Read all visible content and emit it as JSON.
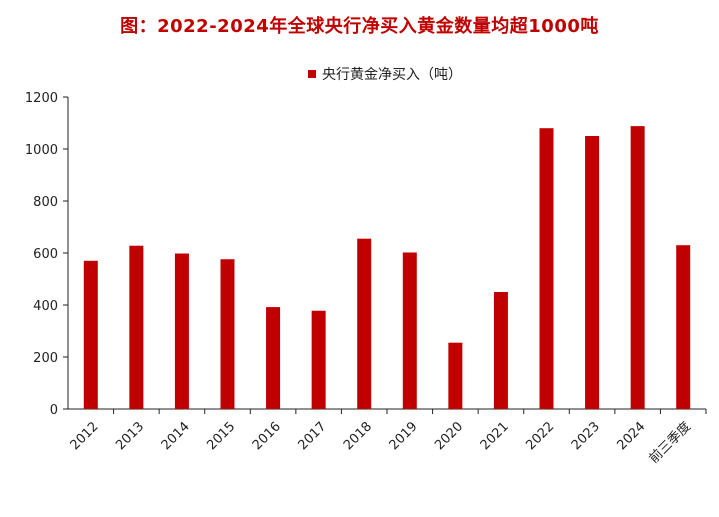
{
  "chart_data": {
    "type": "bar",
    "title": "图：2022-2024年全球央行净买入黄金数量均超1000吨",
    "categories": [
      "2012",
      "2013",
      "2014",
      "2015",
      "2016",
      "2017",
      "2018",
      "2019",
      "2020",
      "2021",
      "2022",
      "2023",
      "2024",
      "前三季度"
    ],
    "series": [
      {
        "name": "央行黄金净买入（吨）",
        "values": [
          570,
          628,
          598,
          576,
          392,
          378,
          655,
          602,
          255,
          450,
          1080,
          1050,
          1088,
          630
        ]
      }
    ],
    "xlabel": "",
    "ylabel": "",
    "ylim": [
      0,
      1200
    ],
    "yticks": [
      0,
      200,
      400,
      600,
      800,
      1000,
      1200
    ],
    "grid": false,
    "legend": "top-center",
    "bar_color": "#c00000",
    "title_color": "#c00000"
  }
}
